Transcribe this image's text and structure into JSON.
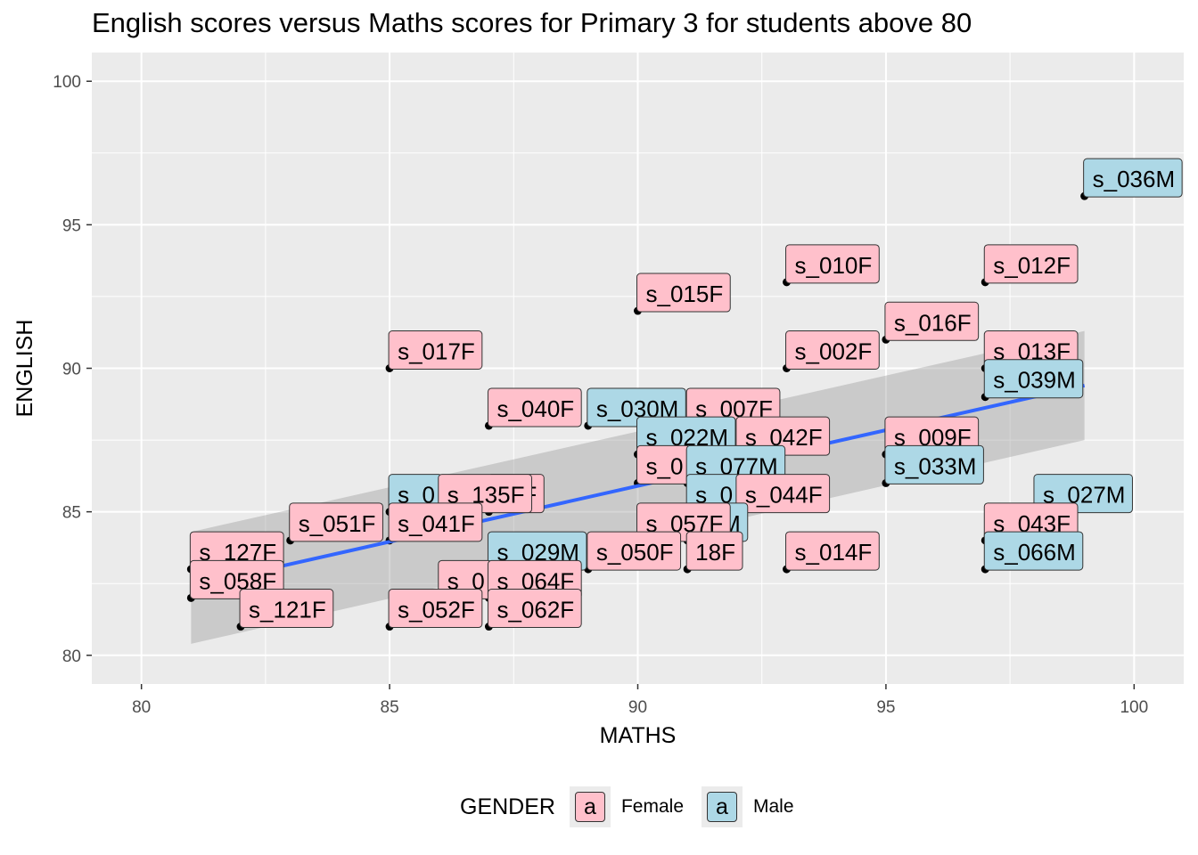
{
  "chart_data": {
    "type": "scatter",
    "title": "English scores versus Maths scores for Primary 3 for students above 80",
    "xlabel": "MATHS",
    "ylabel": "ENGLISH",
    "xlim": [
      79,
      101
    ],
    "ylim": [
      79,
      101
    ],
    "xticks": [
      80,
      85,
      90,
      95,
      100
    ],
    "yticks": [
      80,
      85,
      90,
      95,
      100
    ],
    "grid": true,
    "legend": {
      "title": "GENDER",
      "position": "bottom",
      "key_glyph": "a",
      "entries": [
        {
          "name": "Female",
          "color": "#ffc0cb"
        },
        {
          "name": "Male",
          "color": "#add8e6"
        }
      ]
    },
    "trend_line": {
      "method": "linear",
      "color": "#3366ff",
      "band_color": "#999999",
      "x": [
        81,
        99
      ],
      "y": [
        82.4,
        89.4
      ],
      "band_lower": [
        80.4,
        87.5
      ],
      "band_upper": [
        84.3,
        91.3
      ]
    },
    "points": [
      {
        "x": 99,
        "y": 96,
        "label": "s_036M",
        "gender": "Male"
      },
      {
        "x": 93,
        "y": 93,
        "label": "s_010F",
        "gender": "Female"
      },
      {
        "x": 97,
        "y": 93,
        "label": "s_012F",
        "gender": "Female"
      },
      {
        "x": 90,
        "y": 92,
        "label": "s_015F",
        "gender": "Female"
      },
      {
        "x": 95,
        "y": 91,
        "label": "s_016F",
        "gender": "Female"
      },
      {
        "x": 85,
        "y": 90,
        "label": "s_017F",
        "gender": "Female"
      },
      {
        "x": 93,
        "y": 90,
        "label": "s_002F",
        "gender": "Female"
      },
      {
        "x": 97,
        "y": 90,
        "label": "s_013F",
        "gender": "Female"
      },
      {
        "x": 97,
        "y": 89,
        "label": "s_039M",
        "gender": "Male"
      },
      {
        "x": 87,
        "y": 88,
        "label": "s_040F",
        "gender": "Female"
      },
      {
        "x": 89,
        "y": 88,
        "label": "s_030M",
        "gender": "Male"
      },
      {
        "x": 91,
        "y": 88,
        "label": "s_007F",
        "gender": "Female"
      },
      {
        "x": 90,
        "y": 87,
        "label": "s_022M",
        "gender": "Male"
      },
      {
        "x": 92,
        "y": 87,
        "label": "s_042F",
        "gender": "Female"
      },
      {
        "x": 95,
        "y": 87,
        "label": "s_009F",
        "gender": "Female"
      },
      {
        "x": 90,
        "y": 86,
        "label": "s_0",
        "gender": "Female"
      },
      {
        "x": 91,
        "y": 86,
        "label": "s_077M",
        "gender": "Male"
      },
      {
        "x": 95,
        "y": 86,
        "label": "s_033M",
        "gender": "Male"
      },
      {
        "x": 85,
        "y": 85,
        "label": "s_0",
        "gender": "Male"
      },
      {
        "x": 87,
        "y": 85,
        "label": "61F",
        "gender": "Female"
      },
      {
        "x": 86,
        "y": 85,
        "label": "s_135F",
        "gender": "Female"
      },
      {
        "x": 91,
        "y": 85,
        "label": "s_0",
        "gender": "Male"
      },
      {
        "x": 92,
        "y": 85,
        "label": "s_044F",
        "gender": "Female"
      },
      {
        "x": 98,
        "y": 85,
        "label": "s_027M",
        "gender": "Male"
      },
      {
        "x": 83,
        "y": 84,
        "label": "s_051F",
        "gender": "Female"
      },
      {
        "x": 85,
        "y": 84,
        "label": "s_041F",
        "gender": "Female"
      },
      {
        "x": 91,
        "y": 84,
        "label": "37M",
        "gender": "Male"
      },
      {
        "x": 90,
        "y": 84,
        "label": "s_057F",
        "gender": "Female"
      },
      {
        "x": 97,
        "y": 84,
        "label": "s_043F",
        "gender": "Female"
      },
      {
        "x": 81,
        "y": 83,
        "label": "s_127F",
        "gender": "Female"
      },
      {
        "x": 87,
        "y": 83,
        "label": "s_029M",
        "gender": "Male"
      },
      {
        "x": 91,
        "y": 83,
        "label": "18F",
        "gender": "Female"
      },
      {
        "x": 89,
        "y": 83,
        "label": "s_050F",
        "gender": "Female"
      },
      {
        "x": 93,
        "y": 83,
        "label": "s_014F",
        "gender": "Female"
      },
      {
        "x": 97,
        "y": 83,
        "label": "s_066M",
        "gender": "Male"
      },
      {
        "x": 81,
        "y": 82,
        "label": "s_058F",
        "gender": "Female"
      },
      {
        "x": 86,
        "y": 82,
        "label": "s_0",
        "gender": "Female"
      },
      {
        "x": 87,
        "y": 82,
        "label": "s_064F",
        "gender": "Female"
      },
      {
        "x": 82,
        "y": 81,
        "label": "s_121F",
        "gender": "Female"
      },
      {
        "x": 85,
        "y": 81,
        "label": "s_052F",
        "gender": "Female"
      },
      {
        "x": 87,
        "y": 81,
        "label": "s_062F",
        "gender": "Female"
      }
    ]
  }
}
